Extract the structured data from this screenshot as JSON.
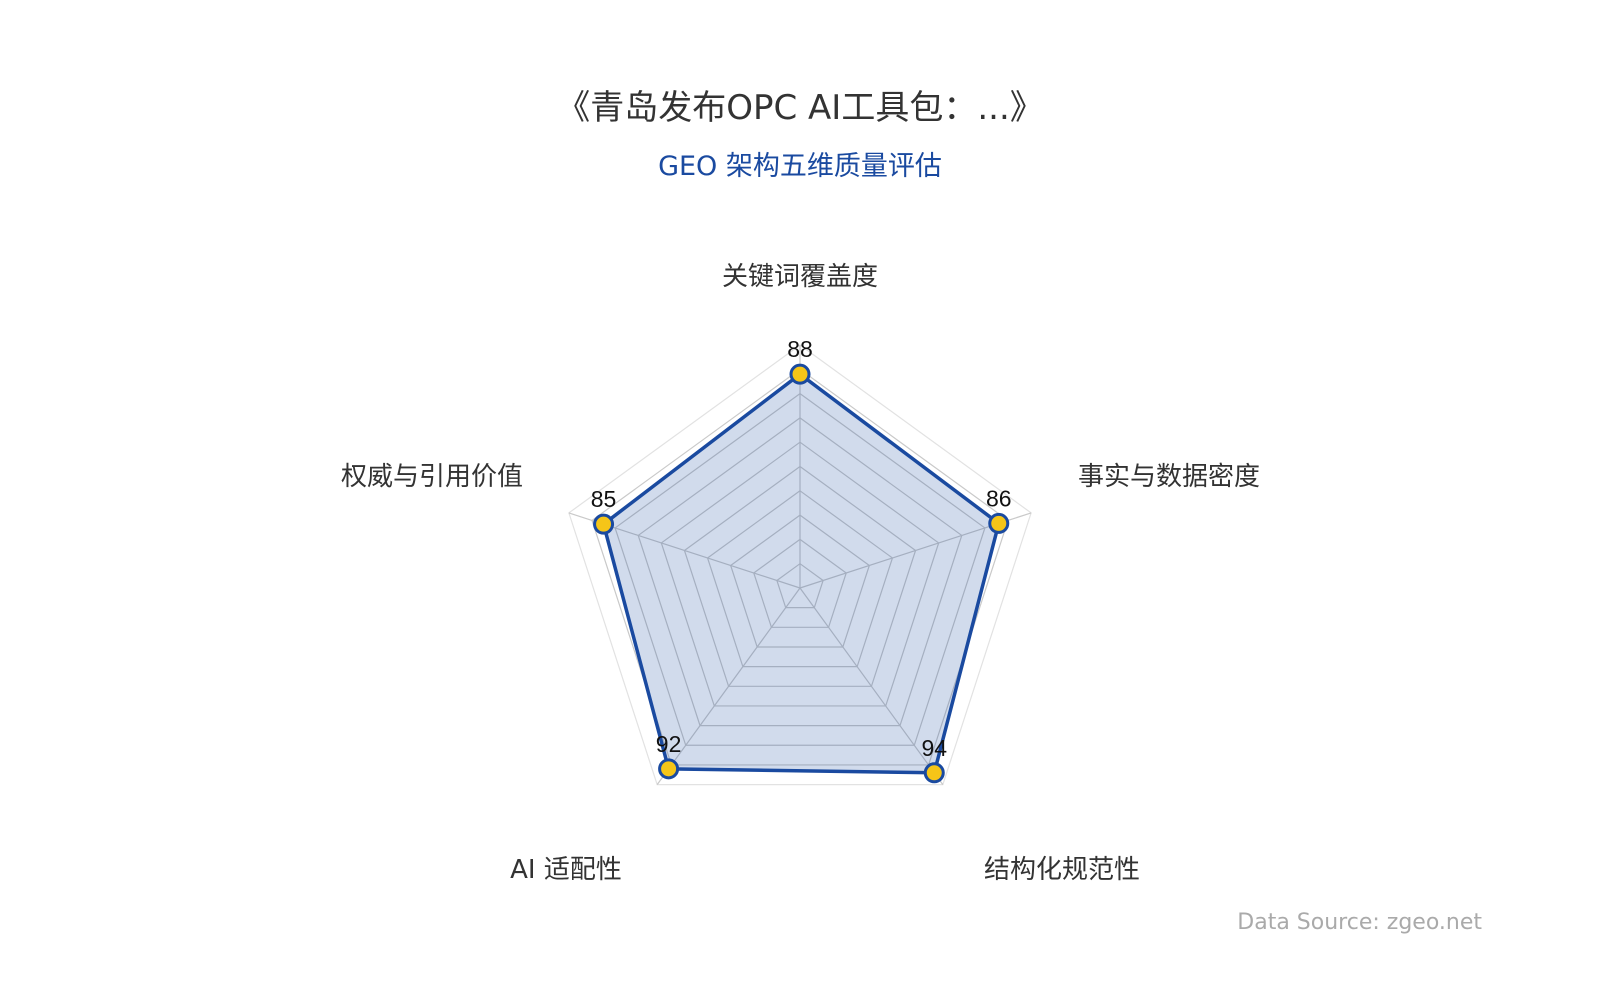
{
  "title": "《青岛发布OPC AI工具包：...》",
  "subtitle": "GEO 架构五维质量评估",
  "source": "Data Source: zgeo.net",
  "colors": {
    "line": "#1a4aa0",
    "fill": "rgba(26,74,160,0.2)",
    "point": "#f5c518",
    "grid": "#cccccc",
    "axis_label": "#333333"
  },
  "chart_data": {
    "type": "radar",
    "title": "《青岛发布OPC AI工具包：...》",
    "subtitle": "GEO 架构五维质量评估",
    "indicators": [
      "关键词覆盖度",
      "事实与数据密度",
      "结构化规范性",
      "AI 适配性",
      "权威与引用价值"
    ],
    "values": [
      88,
      86,
      94,
      92,
      85
    ],
    "max": 100,
    "split_number": 10,
    "grid": true,
    "legend": "none"
  }
}
